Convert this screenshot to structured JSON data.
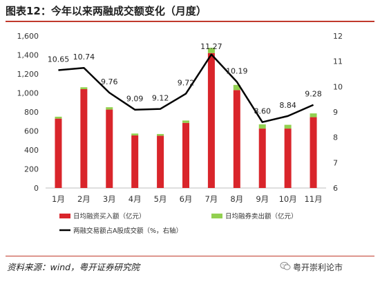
{
  "figure": {
    "title": "图表12：今年以来两融成交额变化（月度）",
    "source": "资料来源：wind，粤开证券研究院",
    "brand": "粤开崇利论市"
  },
  "colors": {
    "financing": "#d9252b",
    "securities_lending": "#92d050",
    "ratio_line": "#000000",
    "title_rule": "#c0392b"
  },
  "icons": {
    "brand": "wechat-icon"
  },
  "chart_data": {
    "type": "bar",
    "categories": [
      "1月",
      "2月",
      "3月",
      "4月",
      "5月",
      "6月",
      "7月",
      "8月",
      "9月",
      "10月",
      "11月"
    ],
    "stacked": true,
    "series": [
      {
        "name": "日均融资买入额（亿元）",
        "type": "bar",
        "axis": "left",
        "values": [
          730,
          1040,
          825,
          553,
          550,
          685,
          1420,
          1030,
          625,
          625,
          745
        ]
      },
      {
        "name": "日均融券卖出额（亿元）",
        "type": "bar",
        "axis": "left",
        "values": [
          20,
          20,
          25,
          20,
          18,
          25,
          55,
          55,
          45,
          40,
          40
        ]
      },
      {
        "name": "两融交易额占A股成交额（%，右轴）",
        "type": "line",
        "axis": "right",
        "values": [
          10.65,
          10.74,
          9.76,
          9.09,
          9.12,
          9.72,
          11.27,
          10.19,
          8.6,
          8.84,
          9.28
        ],
        "labels": [
          "10.65",
          "10.74",
          "9.76",
          "9.09",
          "9.12",
          "9.72",
          "11.27",
          "10.19",
          "8.60",
          "8.84",
          "9.28"
        ]
      }
    ],
    "y_left": {
      "min": 0,
      "max": 1600,
      "ticks": [
        "0",
        "200",
        "400",
        "600",
        "800",
        "1,000",
        "1,200",
        "1,400",
        "1,600"
      ]
    },
    "y_right": {
      "min": 6,
      "max": 12,
      "ticks": [
        "6",
        "7",
        "8",
        "9",
        "10",
        "11",
        "12"
      ]
    },
    "grid": false,
    "legend_position": "bottom"
  }
}
